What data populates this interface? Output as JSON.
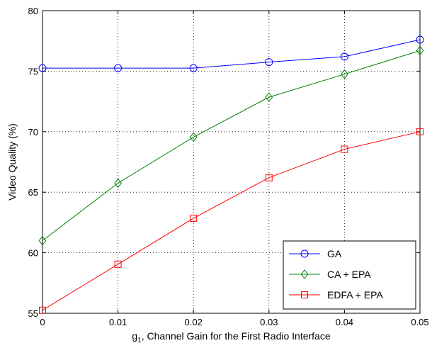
{
  "chart_data": {
    "type": "line",
    "title": "",
    "xlabel_parts": {
      "base": "g",
      "sub": "1",
      "rest": ", Channel Gain for the First Radio Interface"
    },
    "ylabel": "Video Quality (%)",
    "x": [
      0,
      0.01,
      0.02,
      0.03,
      0.04,
      0.05
    ],
    "x_tick_labels": [
      "0",
      "0.01",
      "0.02",
      "0.03",
      "0.04",
      "0.05"
    ],
    "y_ticks": [
      55,
      60,
      65,
      70,
      75,
      80
    ],
    "xlim": [
      0,
      0.05
    ],
    "ylim": [
      55,
      80
    ],
    "grid": true,
    "grid_style": "dotted",
    "legend_position": "lower-right",
    "series": [
      {
        "name": "GA",
        "color": "#0000ff",
        "marker": "circle",
        "values": [
          75.25,
          75.25,
          75.25,
          75.75,
          76.2,
          77.6
        ]
      },
      {
        "name": "CA + EPA",
        "color": "#008000",
        "marker": "diamond",
        "values": [
          61.0,
          65.75,
          69.55,
          72.85,
          74.75,
          76.7
        ]
      },
      {
        "name": "EDFA + EPA",
        "color": "#ff0000",
        "marker": "square",
        "values": [
          55.25,
          59.05,
          62.85,
          66.2,
          68.55,
          70.0
        ]
      }
    ]
  }
}
